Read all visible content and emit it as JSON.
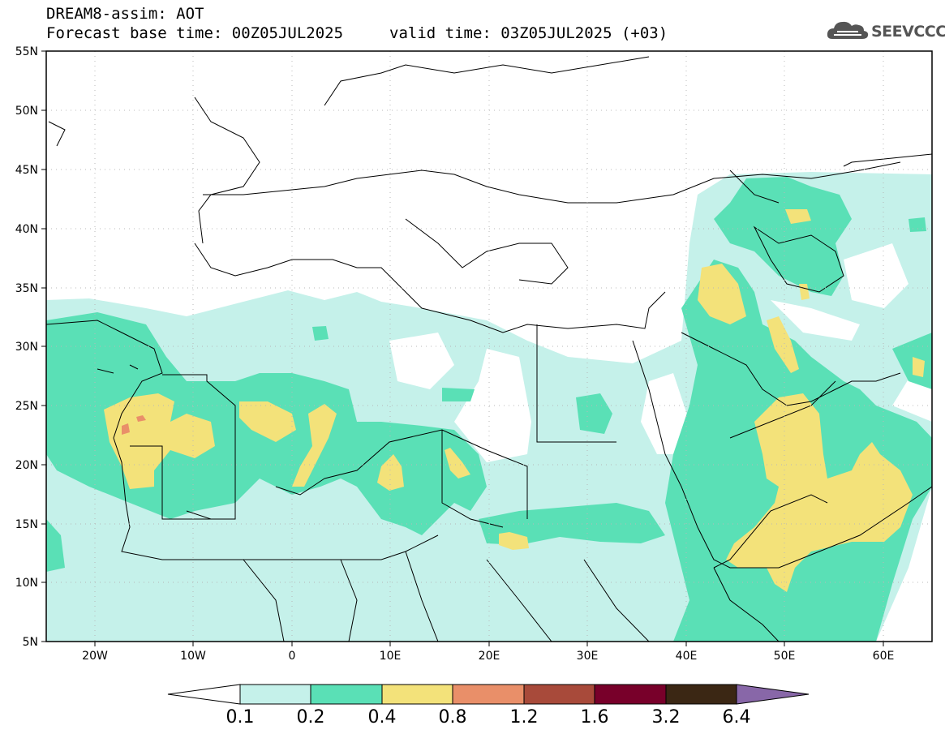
{
  "header": {
    "title": "DREAM8-assim: AOT",
    "base_time": "Forecast base time: 00Z05JUL2025",
    "valid_time": "valid time: 03Z05JUL2025 (+03)",
    "logo_text": "SEEVCCC"
  },
  "map": {
    "variable": "AOT",
    "lat_ticks": [
      "55N",
      "50N",
      "45N",
      "40N",
      "35N",
      "30N",
      "25N",
      "20N",
      "15N",
      "10N",
      "5N"
    ],
    "lon_ticks": [
      "20W",
      "10W",
      "0",
      "10E",
      "20E",
      "30E",
      "40E",
      "50E",
      "60E"
    ],
    "lat_range": [
      5,
      55
    ],
    "lon_range": [
      -25,
      65
    ]
  },
  "colorbar": {
    "levels": [
      "0.1",
      "0.2",
      "0.4",
      "0.8",
      "1.2",
      "1.6",
      "3.2",
      "6.4"
    ],
    "colors": [
      "#ffffff",
      "#c5f1ea",
      "#5ae0b6",
      "#f3e27a",
      "#e98f69",
      "#a84a3a",
      "#78002a",
      "#3b2714",
      "#8867a8"
    ]
  }
}
